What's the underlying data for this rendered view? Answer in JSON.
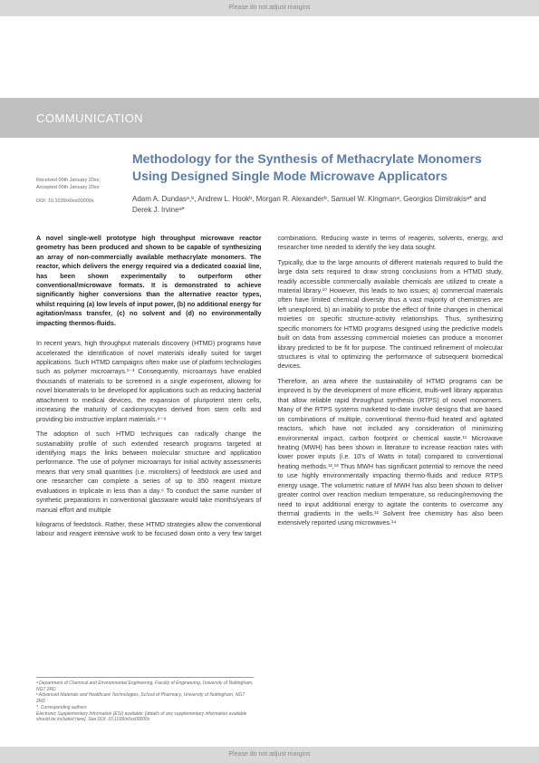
{
  "margin_text": "Please do not adjust margins",
  "banner": "COMMUNICATION",
  "meta": {
    "received": "Received 00th January 20xx,",
    "accepted": "Accepted 00th January 20xx",
    "doi": "DOI: 10.1039/x0xx00000x"
  },
  "title": "Methodology for the Synthesis of Methacrylate Monomers Using Designed Single Mode Microwave Applicators",
  "authors": "Adam A. Dundasᵃ,ᵇ, Andrew L. Hookᵇ, Morgan R. Alexanderᵇ, Samuel W. Kingmanᵃ, Georgios Dimitrakisᵃ* and Derek J. Irvineᵃ*",
  "abstract": "A novel single-well prototype high throughput microwave reactor geometry has been produced and shown to be capable of synthesizing an array of non-commercially available methacrylate monomers. The reactor, which delivers the energy required via a dedicated coaxial line, has been shown experimentally to outperform other conventional/microwave formats. It is demonstrated to achieve significantly higher conversions than the alternative reactor types, whilst requiring (a) low levels of input power, (b) no additional energy for agitation/mass transfer, (c) no solvent and (d) no environmentally impacting thermos-fluids.",
  "p1": "In recent years, high throughput materials discovery (HTMD) programs have accelerated the identification of novel materials ideally suited for target applications. Such HTMD campaigns often make use of platform technologies such as polymer microarrays.¹⁻³ Consequently, microarrays have enabled thousands of materials to be screened in a single experiment, allowing for novel biomaterials to be developed for applications such as reducing bacterial attachment to medical devices, the expansion of pluripotent stem cells, increasing the maturity of cardiomyocytes derived from stem cells and providing bio instructive implant materials.⁴⁻⁹",
  "p2": "The adoption of such HTMD techniques can radically change the sustainability profile of such extended research programs targeted at identifying maps the links between molecular structure and application performance. The use of polymer microarrays for initial activity assessments means that very small quantities (i.e. microliters) of feedstock are used and one researcher can complete a series of up to 350 reagent mixture evaluations in triplicate in less than a day.⁶ To conduct the same number of synthetic preparations in conventional glassware would take months/years of manual effort and multiple",
  "p3": "kilograms of feedstock. Rather, these HTMD strategies allow the conventional labour and reagent intensive work to be focused down onto a very few target combinations. Reducing waste in terms of reagents, solvents, energy, and researcher time needed to identify the key data sought.",
  "p4": "Typically, due to the large amounts of different materials required to build the large data sets required to draw strong conclusions from a HTMD study, readily accessible commercially available chemicals are utilized to create a material library.¹⁰ However, this leads to two issues; a) commercial materials often have limited chemical diversity thus a vast majority of chemistries are left unexplored, b) an inability to probe the effect of finite changes in chemical moieties on specific structure-activity relationships. Thus, synthesizing specific monomers for HTMD programs designed using the predictive models built on data from assessing commercial moieties can produce a monomer library predicted to be fit for purpose. The continued refinement of molecular structures is vital to optimizing the performance of subsequent biomedical devices.",
  "p5": "Therefore, an area where the sustainability of HTMD programs can be improved is by the development of more efficient, multi-well library apparatus that allow reliable rapid throughput synthesis (RTPS) of novel monomers. Many of the RTPS systems marketed to-date involve designs that are based on combinations of multiple, conventional thermo-fluid heated and agitated reactors, which have not included any consideration of minimizing environmental impact, carbon footprint or chemical waste.¹¹ Microwave heating (MWH) has been shown in literature to increase reaction rates with lower power inputs (i.e. 10's of Watts in total) compared to conventional heating methods.¹²,¹³ Thus MWH has significant potential to remove the need to use highly environmentally impacting thermo-fluids and reduce RTPS energy usage. The volumetric nature of MWH has also been shown to deliver greater control over reaction medium temperature, so reducing/removing the need to input additional energy to agitate the contents to overcome any thermal gradients in the wells.¹² Solvent free chemistry has also been extensively reported using microwaves.¹⁴",
  "footer": {
    "a": "ᵃ Department of Chemical and Environmental Engineering, Faculty of Engineering, University of Nottingham, NG7 2RD",
    "b": "ᵇ Advanced Materials and Healthcare Technologies, School of Pharmacy, University of Nottingham, NG7 2RD",
    "c": "*. Corresponding authors",
    "d": "Electronic Supplementary Information (ESI) available: [details of any supplementary information available should be included here]. See DOI: 10.1039/x0xx00000x"
  },
  "colors": {
    "banner_bg": "#bfbfbf",
    "banner_text": "#ffffff",
    "margin_bg": "#d9d9d9",
    "title_color": "#5b7ca8",
    "body_text": "#333333",
    "meta_text": "#666666"
  }
}
